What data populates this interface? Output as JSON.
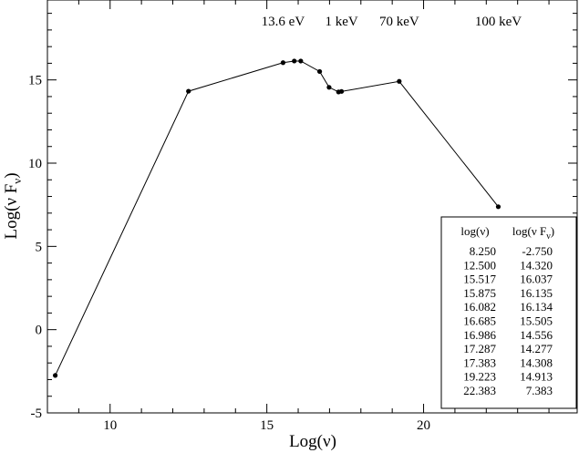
{
  "chart_data": {
    "type": "line",
    "title": "",
    "xlabel": "Log(ν)",
    "ylabel_main": "Log(ν F",
    "ylabel_sub": "ν",
    "ylabel_close": ")",
    "xlim": [
      8.0,
      24.9
    ],
    "ylim": [
      -5,
      19.8
    ],
    "x_ticks": [
      10,
      15,
      20
    ],
    "x_tick_labels": [
      "10",
      "15",
      "20"
    ],
    "y_ticks": [
      -5,
      0,
      5,
      10,
      15
    ],
    "y_tick_labels": [
      "-5",
      "0",
      "5",
      "10",
      "15"
    ],
    "grid": false,
    "legend": "none",
    "series": [
      {
        "x": [
          8.25,
          12.5,
          15.517,
          15.875,
          16.082,
          16.685,
          16.986,
          17.287,
          17.383,
          19.223,
          22.383
        ],
        "y": [
          -2.75,
          14.32,
          16.037,
          16.135,
          16.134,
          15.505,
          14.556,
          14.277,
          14.308,
          14.913,
          7.383
        ]
      }
    ],
    "annotations": [
      {
        "text": "13.6 eV",
        "x": 15.517
      },
      {
        "text": "1 keV",
        "x": 17.383
      },
      {
        "text": "70 keV",
        "x": 19.223
      },
      {
        "text": "100 keV",
        "x": 22.383
      }
    ],
    "table": {
      "header_x": "log(ν)",
      "header_y_main": "log(ν F",
      "header_y_sub": "ν",
      "header_y_close": ")",
      "rows": [
        [
          "8.250",
          "-2.750"
        ],
        [
          "12.500",
          "14.320"
        ],
        [
          "15.517",
          "16.037"
        ],
        [
          "15.875",
          "16.135"
        ],
        [
          "16.082",
          "16.134"
        ],
        [
          "16.685",
          "15.505"
        ],
        [
          "16.986",
          "14.556"
        ],
        [
          "17.287",
          "14.277"
        ],
        [
          "17.383",
          "14.308"
        ],
        [
          "19.223",
          "14.913"
        ],
        [
          "22.383",
          "7.383"
        ]
      ]
    }
  }
}
